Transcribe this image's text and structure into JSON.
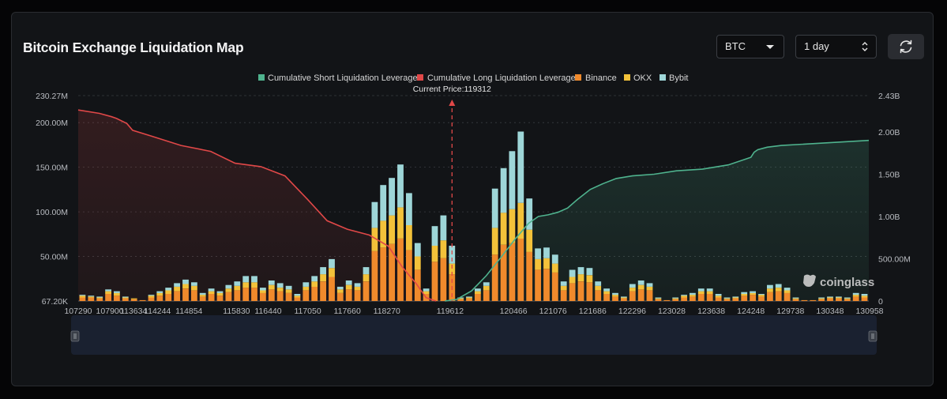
{
  "title": "Bitcoin Exchange Liquidation Map",
  "controls": {
    "coin": "BTC",
    "period": "1 day",
    "refresh_icon": "refresh-icon"
  },
  "colors": {
    "short": "#4fb38e",
    "long": "#e04848",
    "binance": "#f08a2c",
    "okx": "#f3c23a",
    "bybit": "#9ed6d8",
    "background": "#121417"
  },
  "chart_data": {
    "type": "bar",
    "title": "",
    "legend": [
      "Cumulative Short Liquidation Leverage",
      "Cumulative Long Liquidation Leverage",
      "Binance",
      "OKX",
      "Bybit"
    ],
    "legend_position": "top-center",
    "current_price_label": "Current Price:119312",
    "current_price": 119312,
    "x_ticks": [
      "107290",
      "107900",
      "113634",
      "114244",
      "114854",
      "115830",
      "116440",
      "117050",
      "117660",
      "118270",
      "119612",
      "120466",
      "121076",
      "121686",
      "122296",
      "123028",
      "123638",
      "124248",
      "129738",
      "130348",
      "130958"
    ],
    "y_left_ticks": [
      "230.27M",
      "200.00M",
      "150.00M",
      "100.00M",
      "50.00M",
      "67.20K"
    ],
    "y_right_ticks": [
      "2.43B",
      "2.00B",
      "1.50B",
      "1.00B",
      "500.00M",
      "0"
    ],
    "y_left_range": [
      0,
      230.27
    ],
    "y_right_range": [
      0,
      2.43
    ],
    "y_left_unit": "M",
    "y_right_unit": "B",
    "grid": true,
    "bar_count": 92,
    "current_index": 43,
    "stacks": {
      "binance": [
        4,
        4,
        3,
        8,
        6,
        3,
        2,
        1,
        4,
        6,
        8,
        11,
        14,
        12,
        5,
        8,
        6,
        10,
        12,
        15,
        15,
        9,
        13,
        11,
        9,
        4,
        12,
        16,
        22,
        27,
        9,
        13,
        12,
        22,
        56,
        60,
        64,
        70,
        57,
        35,
        8,
        44,
        48,
        30,
        2,
        3,
        8,
        12,
        52,
        63,
        65,
        70,
        55,
        35,
        36,
        32,
        12,
        20,
        22,
        21,
        12,
        8,
        5,
        3,
        11,
        13,
        12,
        2,
        1,
        2,
        4,
        5,
        8,
        8,
        4,
        2,
        3,
        6,
        7,
        5,
        10,
        11,
        9,
        2,
        1,
        1,
        2,
        3,
        3,
        2,
        5,
        4
      ],
      "okx": [
        2,
        1,
        1,
        3,
        3,
        1,
        1,
        0,
        2,
        3,
        4,
        5,
        5,
        5,
        2,
        3,
        3,
        4,
        5,
        6,
        6,
        3,
        5,
        4,
        4,
        2,
        4,
        6,
        8,
        10,
        4,
        5,
        4,
        8,
        26,
        30,
        32,
        35,
        28,
        15,
        3,
        18,
        20,
        12,
        1,
        1,
        3,
        5,
        30,
        36,
        38,
        40,
        25,
        12,
        12,
        10,
        5,
        7,
        8,
        8,
        5,
        3,
        2,
        1,
        4,
        5,
        4,
        1,
        0,
        1,
        2,
        2,
        3,
        3,
        2,
        1,
        1,
        2,
        2,
        2,
        4,
        4,
        3,
        1,
        0,
        0,
        1,
        1,
        1,
        1,
        2,
        2
      ],
      "bybit": [
        1,
        1,
        1,
        2,
        2,
        1,
        0,
        0,
        1,
        2,
        3,
        4,
        5,
        4,
        2,
        3,
        2,
        4,
        5,
        7,
        7,
        3,
        5,
        5,
        4,
        2,
        5,
        6,
        8,
        10,
        3,
        5,
        4,
        8,
        29,
        40,
        42,
        48,
        36,
        15,
        3,
        22,
        28,
        20,
        1,
        1,
        3,
        4,
        44,
        50,
        65,
        80,
        35,
        12,
        12,
        10,
        5,
        8,
        8,
        8,
        5,
        3,
        2,
        1,
        4,
        5,
        4,
        1,
        0,
        1,
        1,
        2,
        3,
        3,
        2,
        1,
        1,
        2,
        2,
        1,
        4,
        4,
        3,
        1,
        0,
        0,
        1,
        1,
        1,
        1,
        2,
        2
      ]
    },
    "short_curve_B": [
      [
        119500,
        0
      ],
      [
        119700,
        0.02
      ],
      [
        119900,
        0.12
      ],
      [
        120100,
        0.3
      ],
      [
        120300,
        0.52
      ],
      [
        120500,
        0.74
      ],
      [
        120700,
        0.92
      ],
      [
        120850,
        1.0
      ],
      [
        121000,
        1.02
      ],
      [
        121150,
        1.05
      ],
      [
        121300,
        1.1
      ],
      [
        121450,
        1.2
      ],
      [
        121650,
        1.32
      ],
      [
        121850,
        1.39
      ],
      [
        122050,
        1.45
      ],
      [
        122300,
        1.48
      ],
      [
        122700,
        1.5
      ],
      [
        123100,
        1.54
      ],
      [
        123500,
        1.56
      ],
      [
        123900,
        1.61
      ],
      [
        124250,
        1.7
      ],
      [
        124700,
        1.76
      ],
      [
        125200,
        1.79
      ],
      [
        126500,
        1.82
      ],
      [
        128500,
        1.84
      ],
      [
        130500,
        1.88
      ],
      [
        131400,
        1.9
      ]
    ],
    "long_curve_B": [
      [
        107290,
        2.26
      ],
      [
        107700,
        2.22
      ],
      [
        108300,
        2.18
      ],
      [
        109500,
        2.16
      ],
      [
        112000,
        2.1
      ],
      [
        113400,
        2.02
      ],
      [
        114100,
        1.95
      ],
      [
        114700,
        1.84
      ],
      [
        115300,
        1.77
      ],
      [
        115800,
        1.63
      ],
      [
        116300,
        1.59
      ],
      [
        116700,
        1.48
      ],
      [
        117050,
        1.2
      ],
      [
        117350,
        0.95
      ],
      [
        117660,
        0.85
      ],
      [
        118000,
        0.78
      ],
      [
        118300,
        0.65
      ],
      [
        118600,
        0.4
      ],
      [
        118900,
        0.2
      ],
      [
        119100,
        0.04
      ],
      [
        119312,
        0.0
      ]
    ]
  }
}
